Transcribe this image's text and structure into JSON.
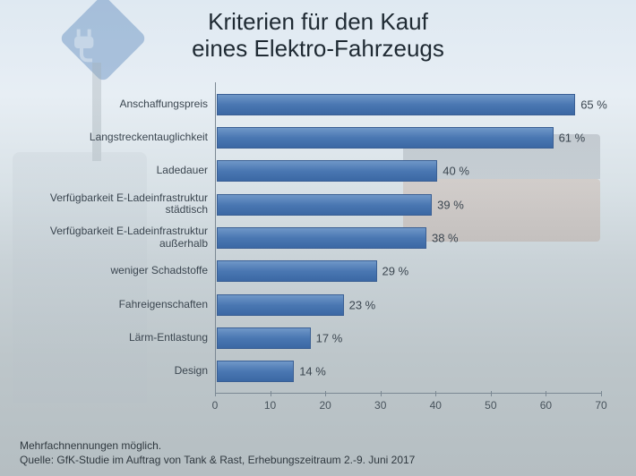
{
  "title": {
    "line1": "Kriterien für den Kauf",
    "line2": "eines Elektro-Fahrzeugs",
    "fontsize": 26,
    "color": "#1f2a33"
  },
  "chart": {
    "type": "bar-horizontal",
    "xmin": 0,
    "xmax": 70,
    "xtick_step": 10,
    "xticks": [
      0,
      10,
      20,
      30,
      40,
      50,
      60,
      70
    ],
    "axis_color": "#7b8893",
    "bar_color": "#4a77b2",
    "bar_border_color": "#3a5f94",
    "value_suffix": " %",
    "category_fontsize": 12,
    "tick_fontsize": 12,
    "value_fontsize": 13,
    "categories": [
      {
        "label": "Anschaffungspreis",
        "value": 65,
        "value_label": "65 %"
      },
      {
        "label": "Langstreckentauglichkeit",
        "value": 61,
        "value_label": "61 %"
      },
      {
        "label": "Ladedauer",
        "value": 40,
        "value_label": "40 %"
      },
      {
        "label": "Verfügbarkeit E-Ladeinfrastruktur städtisch",
        "value": 39,
        "value_label": "39 %"
      },
      {
        "label": "Verfügbarkeit E-Ladeinfrastruktur außerhalb",
        "value": 38,
        "value_label": "38 %"
      },
      {
        "label": "weniger Schadstoffe",
        "value": 29,
        "value_label": "29 %"
      },
      {
        "label": "Fahreigenschaften",
        "value": 23,
        "value_label": "23 %"
      },
      {
        "label": "Lärm-Entlastung",
        "value": 17,
        "value_label": "17 %"
      },
      {
        "label": "Design",
        "value": 14,
        "value_label": "14 %"
      }
    ]
  },
  "footer": {
    "line1": "Mehrfachnennungen möglich.",
    "line2": "Quelle: GfK-Studie im Auftrag von Tank & Rast, Erhebungszeitraum 2.-9. Juni 2017",
    "fontsize": 12,
    "color": "#2f383f"
  },
  "background": {
    "sign_color": "#3a6fb0",
    "opacity": 0.35
  }
}
